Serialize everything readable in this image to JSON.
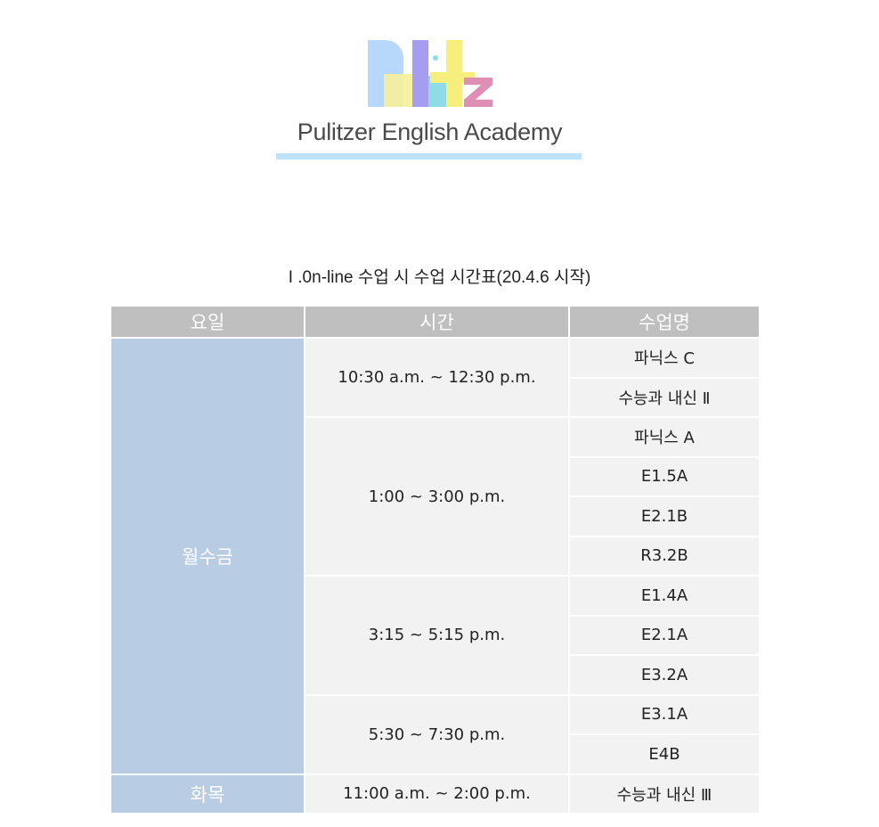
{
  "logo": {
    "mark_text": "Pulitz",
    "name": "Pulitzer English Academy",
    "colors": [
      "#b7d7fb",
      "#f6f09a",
      "#a69cf0",
      "#8fdbe8",
      "#f7ef7d",
      "#df8fb3"
    ]
  },
  "title": "I .0n-line 수업 시 수업 시간표(20.4.6 시작)",
  "table": {
    "headers": [
      "요일",
      "시간",
      "수업명"
    ],
    "groups": [
      {
        "day": "월수금",
        "slots": [
          {
            "time": "10:30 a.m. ~ 12:30 p.m.",
            "classes": [
              "파닉스 C",
              "수능과 내신 Ⅱ"
            ]
          },
          {
            "time": "1:00 ~ 3:00 p.m.",
            "classes": [
              "파닉스 A",
              "E1.5A",
              "E2.1B",
              "R3.2B"
            ]
          },
          {
            "time": "3:15 ~ 5:15 p.m.",
            "classes": [
              "E1.4A",
              "E2.1A",
              "E3.2A"
            ]
          },
          {
            "time": "5:30 ~ 7:30 p.m.",
            "classes": [
              "E3.1A",
              "E4B"
            ]
          }
        ]
      },
      {
        "day": "화목",
        "slots": [
          {
            "time": "11:00 a.m. ~ 2:00 p.m.",
            "classes": [
              "수능과 내신 Ⅲ"
            ]
          }
        ]
      }
    ]
  }
}
